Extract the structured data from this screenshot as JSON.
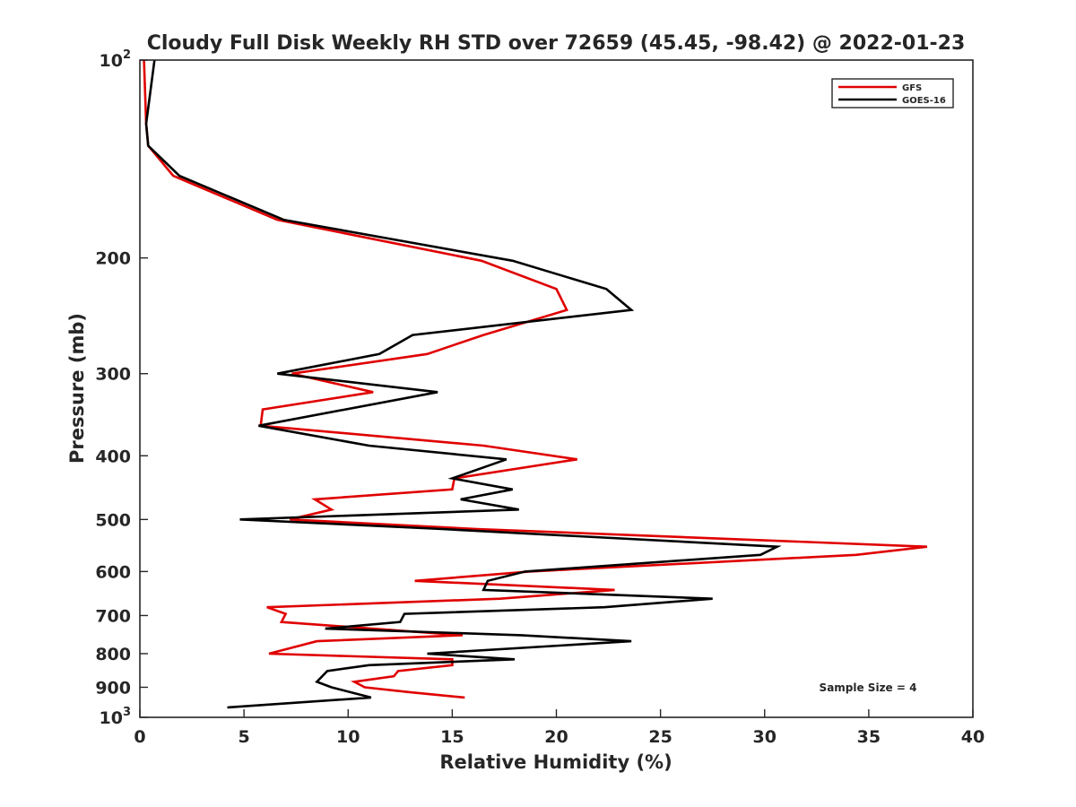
{
  "chart_data": {
    "type": "line",
    "title": "Cloudy Full Disk Weekly RH STD over 72659 (45.45, -98.42) @ 2022-01-23",
    "xlabel": "Relative Humidity (%)",
    "ylabel": "Pressure (mb)",
    "xlim": [
      0,
      40
    ],
    "ylim": [
      100,
      1000
    ],
    "y_scale": "log",
    "y_reversed": true,
    "grid": false,
    "legend_position": "top-right",
    "annotation": "Sample Size = 4",
    "x_ticks": [
      "0",
      "5",
      "10",
      "15",
      "20",
      "25",
      "30",
      "35",
      "40"
    ],
    "x_tick_values": [
      0,
      5,
      10,
      15,
      20,
      25,
      30,
      35,
      40
    ],
    "y_ticks": [
      {
        "value": 100,
        "base": "10",
        "exp": "2"
      },
      {
        "value": 200,
        "base": "200",
        "exp": ""
      },
      {
        "value": 300,
        "base": "300",
        "exp": ""
      },
      {
        "value": 400,
        "base": "400",
        "exp": ""
      },
      {
        "value": 500,
        "base": "500",
        "exp": ""
      },
      {
        "value": 600,
        "base": "600",
        "exp": ""
      },
      {
        "value": 700,
        "base": "700",
        "exp": ""
      },
      {
        "value": 800,
        "base": "800",
        "exp": ""
      },
      {
        "value": 900,
        "base": "900",
        "exp": ""
      },
      {
        "value": 1000,
        "base": "10",
        "exp": "3"
      }
    ],
    "series": [
      {
        "name": "GFS",
        "color": "#e00000",
        "points": [
          [
            0.2,
            100
          ],
          [
            0.3,
            125
          ],
          [
            0.4,
            135
          ],
          [
            1.6,
            150
          ],
          [
            6.6,
            175
          ],
          [
            16.4,
            202
          ],
          [
            20.0,
            223
          ],
          [
            20.5,
            240
          ],
          [
            16.5,
            262
          ],
          [
            13.8,
            280
          ],
          [
            7.3,
            300
          ],
          [
            11.2,
            320
          ],
          [
            5.9,
            340
          ],
          [
            5.8,
            360
          ],
          [
            16.5,
            386
          ],
          [
            21.0,
            405
          ],
          [
            15.1,
            433
          ],
          [
            15.0,
            450
          ],
          [
            8.4,
            466
          ],
          [
            9.2,
            483
          ],
          [
            7.2,
            500
          ],
          [
            16.2,
            517
          ],
          [
            37.8,
            550
          ],
          [
            34.4,
            566
          ],
          [
            18.7,
            600
          ],
          [
            13.2,
            620
          ],
          [
            22.8,
            640
          ],
          [
            17.3,
            660
          ],
          [
            6.1,
            680
          ],
          [
            7.0,
            696
          ],
          [
            6.8,
            716
          ],
          [
            15.5,
            750
          ],
          [
            8.5,
            766
          ],
          [
            6.2,
            800
          ],
          [
            15.0,
            816
          ],
          [
            15.0,
            833
          ],
          [
            12.4,
            850
          ],
          [
            12.2,
            866
          ],
          [
            10.3,
            883
          ],
          [
            10.8,
            900
          ],
          [
            13.0,
            916
          ],
          [
            15.6,
            933
          ]
        ]
      },
      {
        "name": "GOES-16",
        "color": "#000000",
        "points": [
          [
            0.7,
            100
          ],
          [
            0.3,
            125
          ],
          [
            0.4,
            135
          ],
          [
            1.9,
            150
          ],
          [
            6.9,
            175
          ],
          [
            17.9,
            202
          ],
          [
            22.4,
            223
          ],
          [
            23.6,
            240
          ],
          [
            13.1,
            262
          ],
          [
            11.5,
            280
          ],
          [
            6.6,
            300
          ],
          [
            14.3,
            320
          ],
          [
            5.7,
            360
          ],
          [
            11.0,
            386
          ],
          [
            17.6,
            405
          ],
          [
            15.0,
            433
          ],
          [
            17.9,
            450
          ],
          [
            15.4,
            466
          ],
          [
            18.2,
            483
          ],
          [
            4.8,
            500
          ],
          [
            14.5,
            517
          ],
          [
            30.6,
            550
          ],
          [
            29.8,
            566
          ],
          [
            18.5,
            600
          ],
          [
            16.7,
            620
          ],
          [
            16.5,
            640
          ],
          [
            27.5,
            660
          ],
          [
            22.3,
            680
          ],
          [
            12.7,
            696
          ],
          [
            12.5,
            716
          ],
          [
            8.9,
            733
          ],
          [
            18.3,
            750
          ],
          [
            23.6,
            766
          ],
          [
            13.8,
            800
          ],
          [
            18.0,
            816
          ],
          [
            11.0,
            833
          ],
          [
            9.0,
            850
          ],
          [
            8.5,
            883
          ],
          [
            9.2,
            900
          ],
          [
            11.1,
            933
          ],
          [
            4.2,
            966
          ]
        ]
      }
    ]
  }
}
